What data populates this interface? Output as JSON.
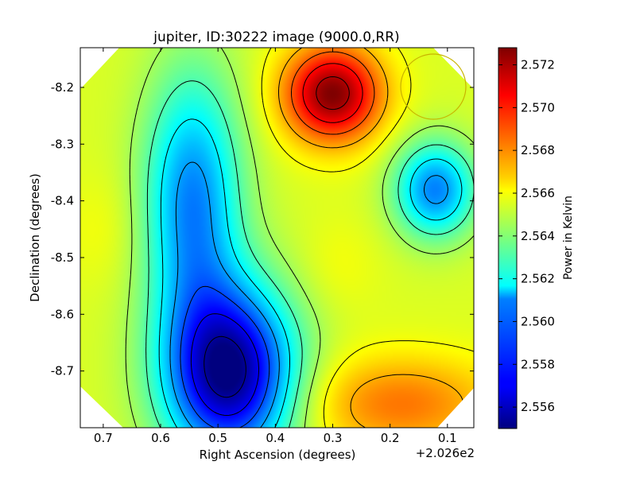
{
  "chart_data": {
    "type": "heatmap",
    "title": "jupiter, ID:30222 image (9000.0,RR)",
    "xlabel": "Right Ascension (degrees)",
    "ylabel": "Declination (degrees)",
    "x_offset_label": "+2.026e2",
    "x_ticks": [
      "0.7",
      "0.6",
      "0.5",
      "0.4",
      "0.3",
      "0.2",
      "0.1"
    ],
    "y_ticks": [
      "-8.2",
      "-8.3",
      "-8.4",
      "-8.5",
      "-8.6",
      "-8.7"
    ],
    "xlim": [
      0.74,
      0.054
    ],
    "ylim": [
      -8.8,
      -8.13
    ],
    "colorbar": {
      "label": "Power in Kelvin",
      "range": [
        2.555,
        2.5728
      ],
      "ticks": [
        "2.556",
        "2.558",
        "2.560",
        "2.562",
        "2.564",
        "2.566",
        "2.568",
        "2.570",
        "2.572"
      ],
      "colormap": "jet"
    },
    "extrema": [
      {
        "kind": "max",
        "x": 0.3,
        "y": -8.21,
        "value": 2.5728
      },
      {
        "kind": "min",
        "x": 0.48,
        "y": -8.705,
        "value": 2.555
      },
      {
        "kind": "min",
        "x": 0.545,
        "y": -8.4,
        "value": 2.5595
      },
      {
        "kind": "min",
        "x": 0.12,
        "y": -8.38,
        "value": 2.5595
      },
      {
        "kind": "max",
        "x": 0.7,
        "y": -8.45,
        "value": 2.566
      },
      {
        "kind": "max",
        "x": 0.29,
        "y": -8.515,
        "value": 2.566
      },
      {
        "kind": "max",
        "x": 0.18,
        "y": -8.76,
        "value": 2.5685
      }
    ],
    "beam_marker": {
      "x": 0.12,
      "y": -8.2,
      "color": "#c8b400"
    }
  }
}
